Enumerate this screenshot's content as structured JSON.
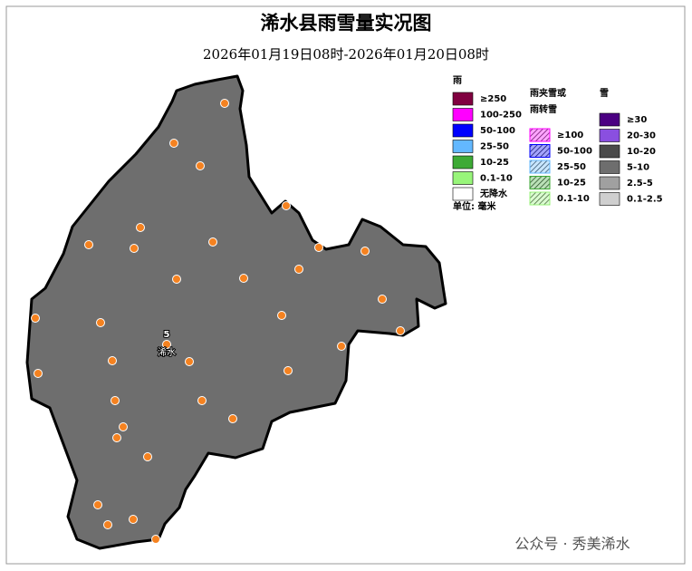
{
  "title": "浠水县雨雪量实况图",
  "subtitle": "2026年01月19日08时-2026年01月20日08时",
  "map": {
    "fill": "#6e6e6e",
    "station_color": "#f58220",
    "station": {
      "value": 5,
      "name": "浠水"
    }
  },
  "legend": {
    "rain": {
      "title": "雨",
      "items": [
        {
          "label": "≥250",
          "color": "#800040"
        },
        {
          "label": "100-250",
          "color": "#ff00ff"
        },
        {
          "label": "50-100",
          "color": "#0000ff"
        },
        {
          "label": "25-50",
          "color": "#63b8ff"
        },
        {
          "label": "10-25",
          "color": "#3daa35"
        },
        {
          "label": "0.1-10",
          "color": "#98f57a"
        },
        {
          "label": "无降水",
          "color": "#ffffff"
        }
      ]
    },
    "mixed": {
      "title": [
        "雨夹雪或",
        "雨转雪"
      ],
      "items": [
        {
          "label": "≥100",
          "color": "#ff00ff"
        },
        {
          "label": "50-100",
          "color": "#0000ff"
        },
        {
          "label": "25-50",
          "color": "#63b8ff"
        },
        {
          "label": "10-25",
          "color": "#3daa35"
        },
        {
          "label": "0.1-10",
          "color": "#98f57a"
        }
      ]
    },
    "snow": {
      "title": "雪",
      "items": [
        {
          "label": "≥30",
          "color": "#4b0082"
        },
        {
          "label": "20-30",
          "color": "#8a4fe0"
        },
        {
          "label": "10-20",
          "color": "#4a4a4a"
        },
        {
          "label": "5-10",
          "color": "#6e6e6e"
        },
        {
          "label": "2.5-5",
          "color": "#a0a0a0"
        },
        {
          "label": "0.1-2.5",
          "color": "#cfcfcf"
        }
      ]
    },
    "unit": "单位: 毫米"
  },
  "watermark": "公众号 · 秀美浠水"
}
